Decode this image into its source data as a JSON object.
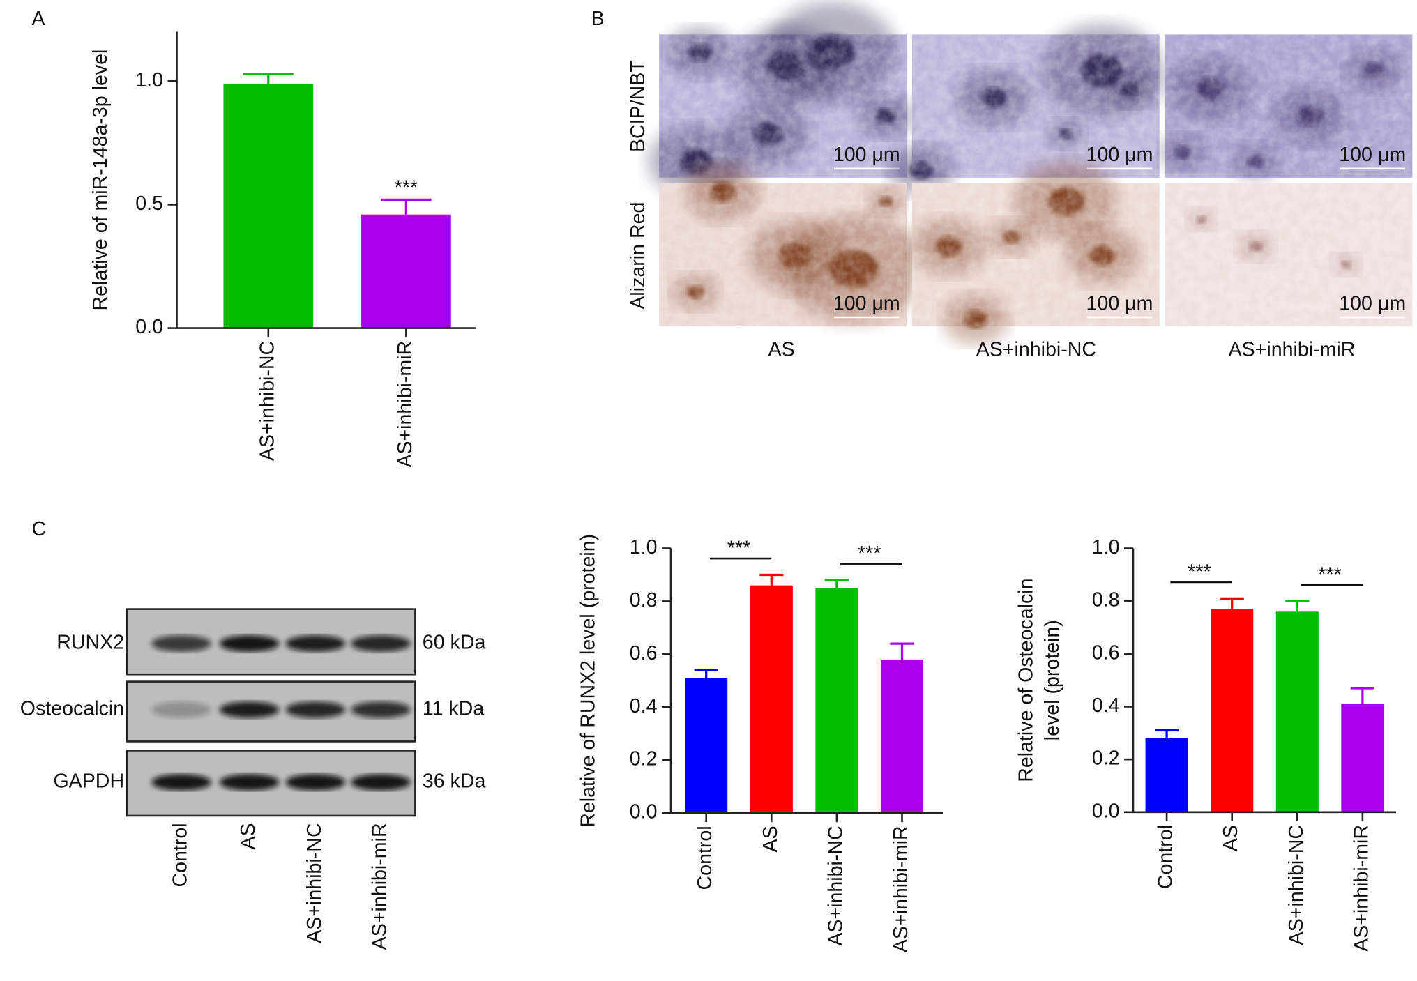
{
  "panel_labels": [
    "A",
    "B",
    "C"
  ],
  "micrographs": {
    "rows": [
      "BCIP/NBT",
      "Alizarin Red"
    ],
    "columns": [
      "AS",
      "AS+inhibi-NC",
      "AS+inhibi-miR"
    ],
    "scale_bar": "100 μm"
  },
  "western_blot": {
    "proteins": [
      {
        "name": "RUNX2",
        "size": "60 kDa"
      },
      {
        "name": "Osteocalcin",
        "size": "11 kDa"
      },
      {
        "name": "GAPDH",
        "size": "36 kDa"
      }
    ],
    "lanes": [
      "Control",
      "AS",
      "AS+inhibi-NC",
      "AS+inhibi-miR"
    ]
  },
  "chart_data": [
    {
      "type": "bar",
      "ylabel": "Relative of miR-148a-3p level",
      "categories": [
        "AS+inhibi-NC",
        "AS+inhibi-miR"
      ],
      "values": [
        0.99,
        0.46
      ],
      "errors": [
        0.04,
        0.06
      ],
      "colors": [
        "#00c000",
        "#aa00ee"
      ],
      "ylim": [
        0,
        1.2
      ],
      "yticks": [
        {
          "value": 0,
          "label": "0.0"
        },
        0.5,
        {
          "value": 1,
          "label": "1.0"
        }
      ],
      "significance": [
        {
          "groups": [
            "AS+inhibi-miR"
          ],
          "label": "***"
        }
      ]
    },
    {
      "type": "bar",
      "ylabel": "Relative of RUNX2 level (protein)",
      "categories": [
        "Control",
        "AS",
        "AS+inhibi-NC",
        "AS+inhibi-miR"
      ],
      "values": [
        0.51,
        0.86,
        0.85,
        0.58
      ],
      "errors": [
        0.03,
        0.04,
        0.03,
        0.06
      ],
      "colors": [
        "#0000ff",
        "#ff0000",
        "#00c000",
        "#aa00ee"
      ],
      "ylim": [
        0,
        1
      ],
      "yticks": [
        {
          "value": 0,
          "label": "0.0"
        },
        0.2,
        0.4,
        0.6,
        0.8,
        {
          "value": 1,
          "label": "1.0"
        }
      ],
      "significance": [
        {
          "groups": [
            "Control",
            "AS"
          ],
          "label": "***"
        },
        {
          "groups": [
            "AS+inhibi-NC",
            "AS+inhibi-miR"
          ],
          "label": "***"
        }
      ]
    },
    {
      "type": "bar",
      "ylabel": [
        "Relative of Osteocalcin",
        "level (protein)"
      ],
      "categories": [
        "Control",
        "AS",
        "AS+inhibi-NC",
        "AS+inhibi-miR"
      ],
      "values": [
        0.28,
        0.77,
        0.76,
        0.41
      ],
      "errors": [
        0.03,
        0.04,
        0.04,
        0.06
      ],
      "colors": [
        "#0000ff",
        "#ff0000",
        "#00c000",
        "#aa00ee"
      ],
      "ylim": [
        0,
        1
      ],
      "yticks": [
        {
          "value": 0,
          "label": "0.0"
        },
        0.2,
        0.4,
        0.6,
        0.8,
        {
          "value": 1,
          "label": "1.0"
        }
      ],
      "significance": [
        {
          "groups": [
            "Control",
            "AS"
          ],
          "label": "***"
        },
        {
          "groups": [
            "AS+inhibi-NC",
            "AS+inhibi-miR"
          ],
          "label": "***"
        }
      ]
    }
  ]
}
